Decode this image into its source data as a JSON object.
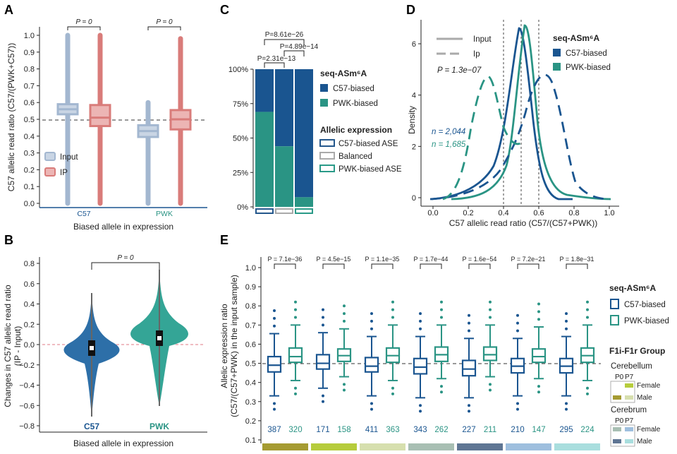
{
  "colors": {
    "c57": "#1a5590",
    "pwk": "#2a9484",
    "input_box": "#a3b7d0",
    "ip_box": "#d97c7a",
    "violin_c57": "#2d6fa8",
    "violin_pwk": "#34a596",
    "ase_c57": "#24578c",
    "ase_bal": "#aaaaaa",
    "ase_pwk": "#2a9a88"
  },
  "panelA": {
    "letter": "A",
    "ylabel": "C57 allelic read ratio (C57/(PWK+C57))",
    "xlabel": "Biased allele in expression",
    "yticks": [
      "1.0",
      "0.9",
      "0.8",
      "0.7",
      "0.6",
      "0.5",
      "0.4",
      "0.3",
      "0.2",
      "0.1",
      "0.0"
    ],
    "groups": [
      {
        "name": "C57",
        "p": "P = 0"
      },
      {
        "name": "PWK",
        "p": "P = 0"
      }
    ],
    "legend": {
      "input": "Input",
      "ip": "IP"
    }
  },
  "panelB": {
    "letter": "B",
    "ylabel1": "Changes in C57 allelic read ratio",
    "ylabel2": "(IP - Input)",
    "xlabel": "Biased allele in expression",
    "p": "P = 0",
    "yticks": [
      "0.8",
      "0.6",
      "0.4",
      "0.2",
      "0.0",
      "−0.2",
      "−0.4",
      "−0.6",
      "−0.8"
    ],
    "groups": [
      "C57",
      "PWK"
    ]
  },
  "panelC": {
    "letter": "C",
    "yticks": [
      "100%",
      "75%",
      "50%",
      "25%",
      "0%"
    ],
    "p_values": [
      "P=8.61e−26",
      "P=4.89e−14",
      "P=2.31e−13"
    ],
    "chart_data": {
      "type": "bar",
      "stacked": true,
      "categories": [
        "C57-biased ASE",
        "Balanced",
        "PWK-biased ASE"
      ],
      "series": [
        {
          "name": "C57-biased",
          "values": [
            31,
            56,
            93
          ]
        },
        {
          "name": "PWK-biased",
          "values": [
            69,
            44,
            7
          ]
        }
      ],
      "ylim": [
        0,
        100
      ]
    },
    "legend": {
      "title1": "seq-ASm⁶A",
      "items1": [
        "C57-biased",
        "PWK-biased"
      ],
      "title2": "Allelic expression",
      "items2": [
        "C57-biased ASE",
        "Balanced",
        "PWK-biased ASE"
      ]
    }
  },
  "panelD": {
    "letter": "D",
    "ylabel": "Density",
    "xlabel": "C57 allelic read ratio (C57/(C57+PWK))",
    "xticks": [
      "0.0",
      "0.2",
      "0.4",
      "0.6",
      "0.8",
      "1.0"
    ],
    "yticks": [
      "6",
      "4",
      "2",
      "0"
    ],
    "legend_lines": [
      "Input",
      "Ip"
    ],
    "p": "P = 1.3e−07",
    "n_c57": "n = 2,044",
    "n_pwk": "n = 1,685",
    "legend_title": "seq-ASm⁶A",
    "legend_items": [
      "C57-biased",
      "PWK-biased"
    ],
    "vlines": [
      "0.4",
      "0.5",
      "0.6"
    ]
  },
  "panelE": {
    "letter": "E",
    "ylabel1": "Allelic expression ratio",
    "ylabel2": "(C57/(C57+PWK) in the input sample)",
    "yticks": [
      "1.0",
      "0.9",
      "0.8",
      "0.7",
      "0.6",
      "0.5",
      "0.4",
      "0.3",
      "0.2",
      "0.1"
    ],
    "groups": [
      {
        "p": "P = 7.1e−36",
        "n_c57": "387",
        "n_pwk": "320",
        "c57": {
          "q1": 0.455,
          "med": 0.49,
          "q3": 0.535,
          "wl": 0.33,
          "wh": 0.655
        },
        "pwk": {
          "q1": 0.505,
          "med": 0.535,
          "q3": 0.58,
          "wl": 0.41,
          "wh": 0.7
        },
        "bar": "#a59b32"
      },
      {
        "p": "P = 4.5e−15",
        "n_c57": "171",
        "n_pwk": "158",
        "c57": {
          "q1": 0.47,
          "med": 0.5,
          "q3": 0.545,
          "wl": 0.37,
          "wh": 0.66
        },
        "pwk": {
          "q1": 0.51,
          "med": 0.54,
          "q3": 0.575,
          "wl": 0.43,
          "wh": 0.68
        },
        "bar": "#b6cc3c"
      },
      {
        "p": "P = 1.1e−35",
        "n_c57": "411",
        "n_pwk": "363",
        "c57": {
          "q1": 0.455,
          "med": 0.485,
          "q3": 0.53,
          "wl": 0.33,
          "wh": 0.64
        },
        "pwk": {
          "q1": 0.505,
          "med": 0.54,
          "q3": 0.58,
          "wl": 0.41,
          "wh": 0.7
        },
        "bar": "#d6dfae"
      },
      {
        "p": "P = 1.7e−44",
        "n_c57": "343",
        "n_pwk": "262",
        "c57": {
          "q1": 0.445,
          "med": 0.48,
          "q3": 0.525,
          "wl": 0.32,
          "wh": 0.64
        },
        "pwk": {
          "q1": 0.51,
          "med": 0.545,
          "q3": 0.585,
          "wl": 0.42,
          "wh": 0.7
        },
        "bar": "#a8bfb3"
      },
      {
        "p": "P = 1.6e−54",
        "n_c57": "227",
        "n_pwk": "211",
        "c57": {
          "q1": 0.435,
          "med": 0.47,
          "q3": 0.515,
          "wl": 0.32,
          "wh": 0.63
        },
        "pwk": {
          "q1": 0.515,
          "med": 0.545,
          "q3": 0.585,
          "wl": 0.43,
          "wh": 0.7
        },
        "bar": "#5f7694"
      },
      {
        "p": "P = 7.2e−21",
        "n_c57": "210",
        "n_pwk": "147",
        "c57": {
          "q1": 0.45,
          "med": 0.485,
          "q3": 0.525,
          "wl": 0.33,
          "wh": 0.63
        },
        "pwk": {
          "q1": 0.505,
          "med": 0.535,
          "q3": 0.575,
          "wl": 0.42,
          "wh": 0.69
        },
        "bar": "#9ebfde"
      },
      {
        "p": "P = 1.8e−31",
        "n_c57": "295",
        "n_pwk": "224",
        "c57": {
          "q1": 0.45,
          "med": 0.485,
          "q3": 0.525,
          "wl": 0.33,
          "wh": 0.64
        },
        "pwk": {
          "q1": 0.505,
          "med": 0.54,
          "q3": 0.58,
          "wl": 0.41,
          "wh": 0.7
        },
        "bar": "#a9dede"
      }
    ],
    "legend": {
      "title": "seq-ASm⁶A",
      "items": [
        "C57-biased",
        "PWK-biased"
      ],
      "group_title": "F1i-F1r Group",
      "cerebellum": "Cerebellum",
      "cerebrum": "Cerebrum",
      "p0": "P0",
      "p7": "P7",
      "female": "Female",
      "male": "Male"
    }
  }
}
